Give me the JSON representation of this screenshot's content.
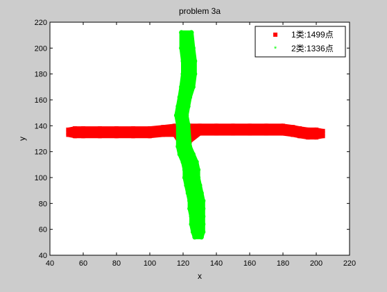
{
  "chart_data": {
    "type": "scatter",
    "title": "problem 3a",
    "xlabel": "x",
    "ylabel": "y",
    "xlim": [
      40,
      220
    ],
    "ylim": [
      40,
      220
    ],
    "xticks": [
      40,
      60,
      80,
      100,
      120,
      140,
      160,
      180,
      200,
      220
    ],
    "yticks": [
      40,
      60,
      80,
      100,
      120,
      140,
      160,
      180,
      200,
      220
    ],
    "grid": false,
    "legend_position": "top-right",
    "series": [
      {
        "name": "1类:1499点",
        "color": "#ff0000",
        "marker": "square",
        "points": [
          [
            51,
            133
          ],
          [
            51,
            137
          ],
          [
            55,
            132
          ],
          [
            55,
            138
          ],
          [
            60,
            132
          ],
          [
            60,
            138
          ],
          [
            70,
            132
          ],
          [
            70,
            138
          ],
          [
            80,
            132
          ],
          [
            80,
            138
          ],
          [
            90,
            132
          ],
          [
            90,
            138
          ],
          [
            100,
            132
          ],
          [
            100,
            138
          ],
          [
            108,
            133
          ],
          [
            108,
            139
          ],
          [
            115,
            133
          ],
          [
            115,
            140
          ],
          [
            118,
            127
          ],
          [
            118,
            134
          ],
          [
            120,
            127
          ],
          [
            120,
            134
          ],
          [
            122,
            127
          ],
          [
            122,
            134
          ],
          [
            124,
            128
          ],
          [
            124,
            140
          ],
          [
            130,
            134
          ],
          [
            130,
            140
          ],
          [
            140,
            134
          ],
          [
            140,
            140
          ],
          [
            150,
            134
          ],
          [
            150,
            140
          ],
          [
            160,
            134
          ],
          [
            160,
            140
          ],
          [
            170,
            134
          ],
          [
            170,
            140
          ],
          [
            180,
            134
          ],
          [
            180,
            140
          ],
          [
            186,
            133
          ],
          [
            186,
            139
          ],
          [
            190,
            132
          ],
          [
            190,
            138
          ],
          [
            195,
            131
          ],
          [
            195,
            137
          ],
          [
            200,
            131
          ],
          [
            200,
            137
          ],
          [
            204,
            132
          ],
          [
            204,
            136
          ]
        ]
      },
      {
        "name": "2类:1336点",
        "color": "#00ff00",
        "marker": "star",
        "points": [
          [
            119,
            212
          ],
          [
            125,
            212
          ],
          [
            119,
            200
          ],
          [
            126,
            200
          ],
          [
            120,
            190
          ],
          [
            127,
            190
          ],
          [
            120,
            180
          ],
          [
            127,
            180
          ],
          [
            119,
            170
          ],
          [
            126,
            170
          ],
          [
            118,
            162
          ],
          [
            124,
            162
          ],
          [
            117,
            155
          ],
          [
            123,
            155
          ],
          [
            116,
            148
          ],
          [
            122,
            148
          ],
          [
            117,
            141
          ],
          [
            123,
            141
          ],
          [
            117,
            124
          ],
          [
            124,
            124
          ],
          [
            118,
            118
          ],
          [
            126,
            118
          ],
          [
            120,
            112
          ],
          [
            128,
            112
          ],
          [
            121,
            106
          ],
          [
            129,
            106
          ],
          [
            121,
            100
          ],
          [
            129,
            100
          ],
          [
            122,
            94
          ],
          [
            130,
            94
          ],
          [
            123,
            88
          ],
          [
            131,
            88
          ],
          [
            124,
            82
          ],
          [
            132,
            82
          ],
          [
            124,
            76
          ],
          [
            132,
            76
          ],
          [
            125,
            70
          ],
          [
            132,
            70
          ],
          [
            125,
            64
          ],
          [
            132,
            64
          ],
          [
            126,
            58
          ],
          [
            132,
            58
          ],
          [
            127,
            54
          ],
          [
            131,
            54
          ]
        ]
      }
    ]
  }
}
